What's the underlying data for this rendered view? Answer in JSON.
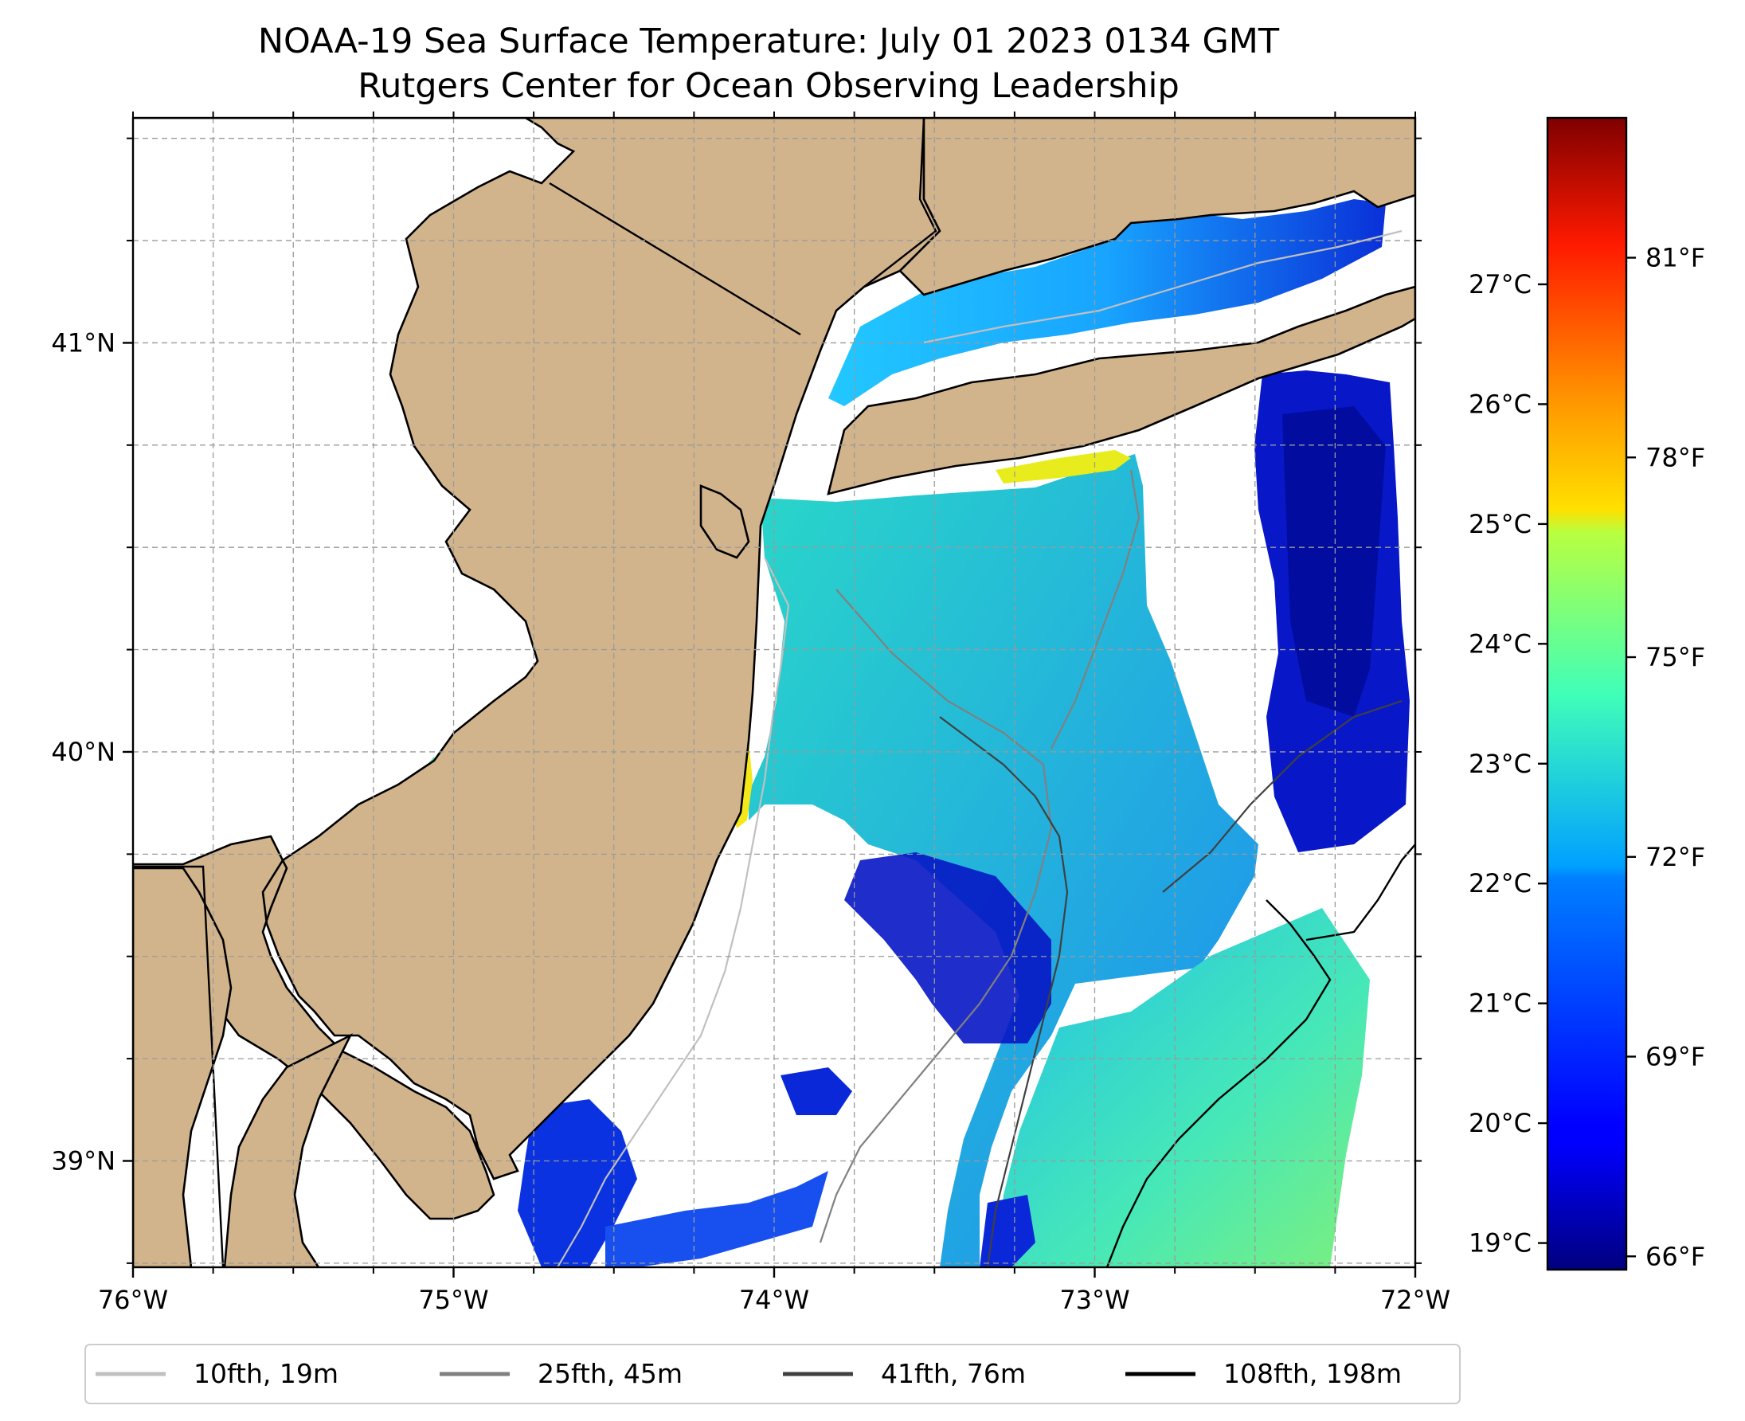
{
  "map": {
    "title": "NOAA-19 Sea Surface Temperature: July 01 2023 0134 GMT",
    "subtitle": "Rutgers Center for Ocean Observing Leadership",
    "lon_range": [
      -76,
      -72
    ],
    "lat_range": [
      38.74,
      41.55
    ],
    "x_ticks": [
      {
        "lon": -76,
        "label": "76°W"
      },
      {
        "lon": -75,
        "label": "75°W"
      },
      {
        "lon": -74,
        "label": "74°W"
      },
      {
        "lon": -73,
        "label": "73°W"
      },
      {
        "lon": -72,
        "label": "72°W"
      }
    ],
    "y_ticks": [
      {
        "lat": 41,
        "label": "41°N"
      },
      {
        "lat": 40,
        "label": "40°N"
      },
      {
        "lat": 39,
        "label": "39°N"
      }
    ],
    "gridlines": true,
    "land_color": "#d2b48c"
  },
  "colorbar": {
    "colormap": "jet",
    "celsius_ticks": [
      {
        "value": 19,
        "label": "19°C"
      },
      {
        "value": 20,
        "label": "20°C"
      },
      {
        "value": 21,
        "label": "21°C"
      },
      {
        "value": 22,
        "label": "22°C"
      },
      {
        "value": 23,
        "label": "23°C"
      },
      {
        "value": 24,
        "label": "24°C"
      },
      {
        "value": 25,
        "label": "25°C"
      },
      {
        "value": 26,
        "label": "26°C"
      },
      {
        "value": 27,
        "label": "27°C"
      }
    ],
    "fahrenheit_ticks": [
      {
        "value": 66,
        "label": "66°F"
      },
      {
        "value": 69,
        "label": "69°F"
      },
      {
        "value": 72,
        "label": "72°F"
      },
      {
        "value": 75,
        "label": "75°F"
      },
      {
        "value": 78,
        "label": "78°F"
      },
      {
        "value": 81,
        "label": "81°F"
      }
    ],
    "range_f": [
      65.8,
      83.1
    ]
  },
  "legend": {
    "items": [
      {
        "label": "10fth, 19m",
        "color": "#c0c0c0"
      },
      {
        "label": "25fth, 45m",
        "color": "#808080"
      },
      {
        "label": "41fth, 76m",
        "color": "#404040"
      },
      {
        "label": "108fth, 198m",
        "color": "#000000"
      }
    ]
  }
}
